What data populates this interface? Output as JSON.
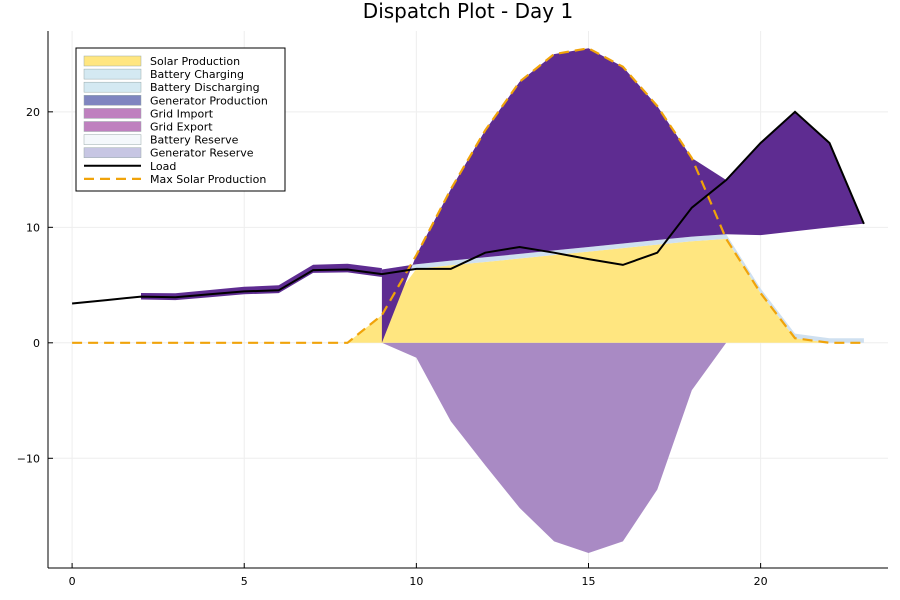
{
  "chart_data": {
    "type": "area",
    "title": "Dispatch Plot - Day 1",
    "xlabel": "",
    "ylabel": "",
    "xlim": [
      -0.7,
      23.7
    ],
    "ylim": [
      -19.5,
      27.0
    ],
    "xticks": [
      0,
      5,
      10,
      15,
      20
    ],
    "yticks": [
      -10,
      0,
      10,
      20
    ],
    "xtick_labels": [
      "0",
      "5",
      "10",
      "15",
      "20"
    ],
    "ytick_labels": [
      "−10",
      "0",
      "10",
      "20"
    ],
    "grid": true,
    "legend_position": "top-left",
    "legend": [
      {
        "name": "Solar Production",
        "kind": "fill",
        "color": "#ffe680"
      },
      {
        "name": "Battery Charging",
        "kind": "fill",
        "color": "#d4e9f2"
      },
      {
        "name": "Battery Discharging",
        "kind": "fill",
        "color": "#d4e9f2"
      },
      {
        "name": "Generator Production",
        "kind": "fill",
        "color": "#7f85c0"
      },
      {
        "name": "Grid Import",
        "kind": "fill",
        "color": "#bf80bf"
      },
      {
        "name": "Grid Export",
        "kind": "fill",
        "color": "#bf80bf"
      },
      {
        "name": "Battery Reserve",
        "kind": "fill",
        "color": "#f4f8fb"
      },
      {
        "name": "Generator Reserve",
        "kind": "fill",
        "color": "#c7c6e3"
      },
      {
        "name": "Load",
        "kind": "line",
        "color": "#000000"
      },
      {
        "name": "Max Solar Production",
        "kind": "dashed",
        "color": "#f0a30a"
      }
    ],
    "x": [
      0,
      1,
      2,
      3,
      4,
      5,
      6,
      7,
      8,
      9,
      10,
      11,
      12,
      13,
      14,
      15,
      16,
      17,
      18,
      19,
      20,
      21,
      22,
      23
    ],
    "series": [
      {
        "name": "Load",
        "values": [
          3.4,
          3.7,
          4.0,
          3.95,
          4.2,
          4.45,
          4.55,
          6.3,
          6.35,
          5.95,
          6.4,
          6.4,
          7.8,
          8.3,
          7.8,
          7.25,
          6.75,
          7.8,
          11.7,
          14.1,
          17.3,
          20.0,
          17.3,
          10.3
        ]
      },
      {
        "name": "Max Solar Production",
        "values": [
          0,
          0,
          0,
          0,
          0,
          0,
          0,
          0,
          0,
          2.4,
          7.6,
          13.3,
          18.4,
          22.6,
          25.0,
          25.5,
          23.9,
          20.5,
          16.0,
          9.0,
          4.3,
          0.4,
          0,
          0
        ]
      },
      {
        "name": "Solar Production",
        "values": [
          0,
          0,
          0,
          0,
          0,
          0,
          0,
          0,
          0,
          2.4,
          6.4,
          6.72,
          7.0,
          7.3,
          7.6,
          7.9,
          8.2,
          8.5,
          8.8,
          9.0,
          4.3,
          0.4,
          0,
          0
        ]
      },
      {
        "name": "Grid Export",
        "values": [
          0,
          0,
          0,
          0,
          0,
          0,
          0,
          0,
          0,
          0,
          -1.3,
          -6.8,
          -10.6,
          -14.3,
          -17.2,
          -18.2,
          -17.2,
          -12.7,
          -4.1,
          0,
          0,
          0,
          0,
          0
        ]
      },
      {
        "name": "Battery Reserve",
        "values": [
          0,
          0,
          0,
          0,
          0,
          0,
          0,
          0,
          0.35,
          0.4,
          0.4,
          0.4,
          0.4,
          0.4,
          0.4,
          0.4,
          0.4,
          0.4,
          0.4,
          0.4,
          0.4,
          0.4,
          0.4,
          0.4
        ]
      },
      {
        "name": "Generator Reserve",
        "values": [
          0,
          0,
          0,
          0,
          0,
          0,
          0,
          0,
          0,
          0,
          7.6,
          13.3,
          18.4,
          22.6,
          25.0,
          25.5,
          23.9,
          20.5,
          16.0,
          14.1,
          17.3,
          20.0,
          17.3,
          10.3
        ]
      }
    ],
    "colors": {
      "solar": "#ffe680",
      "export": "#a98ac4",
      "generator": "#5e2c91",
      "battery_reserve": "#cfe0f0",
      "load": "#000000",
      "max_solar": "#f0a30a",
      "grid": "#eeeeee",
      "axis": "#000000"
    }
  }
}
